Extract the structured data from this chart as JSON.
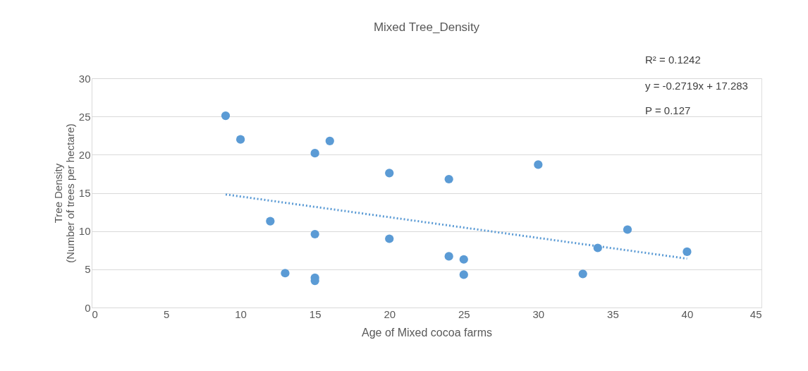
{
  "chart_data": {
    "type": "scatter",
    "title": "Mixed Tree_Density",
    "xlabel": "Age of Mixed cocoa farms",
    "ylabel": "Tree Density\n(Number of trees per hectare)",
    "xlim": [
      0,
      45
    ],
    "xticks": [
      0,
      5,
      10,
      15,
      20,
      25,
      30,
      35,
      40,
      45
    ],
    "ylim": [
      0,
      30
    ],
    "yticks": [
      0,
      5,
      10,
      15,
      20,
      25,
      30
    ],
    "grid": "y",
    "marker": "circle",
    "legend": false,
    "series": [
      {
        "color": "#5b9bd5",
        "x": [
          9,
          10,
          16,
          15,
          20,
          24,
          30,
          12,
          15,
          20,
          13,
          15,
          15,
          24,
          25,
          25,
          33,
          34,
          36,
          40
        ],
        "values": [
          25.1,
          22.0,
          21.8,
          20.2,
          17.6,
          16.8,
          18.7,
          11.3,
          9.6,
          9.0,
          4.5,
          3.9,
          3.5,
          6.7,
          6.3,
          4.3,
          4.4,
          7.8,
          10.2,
          7.3
        ]
      },
      {
        "type": "line",
        "color": "#5b9bd5",
        "line_style": "dotted",
        "marker": "none",
        "x": [
          9,
          40
        ],
        "values": [
          14.8,
          6.4
        ]
      }
    ],
    "annotations": [
      "R² = 0.1242",
      "y = -0.2719x + 17.283",
      "P = 0.127"
    ]
  }
}
